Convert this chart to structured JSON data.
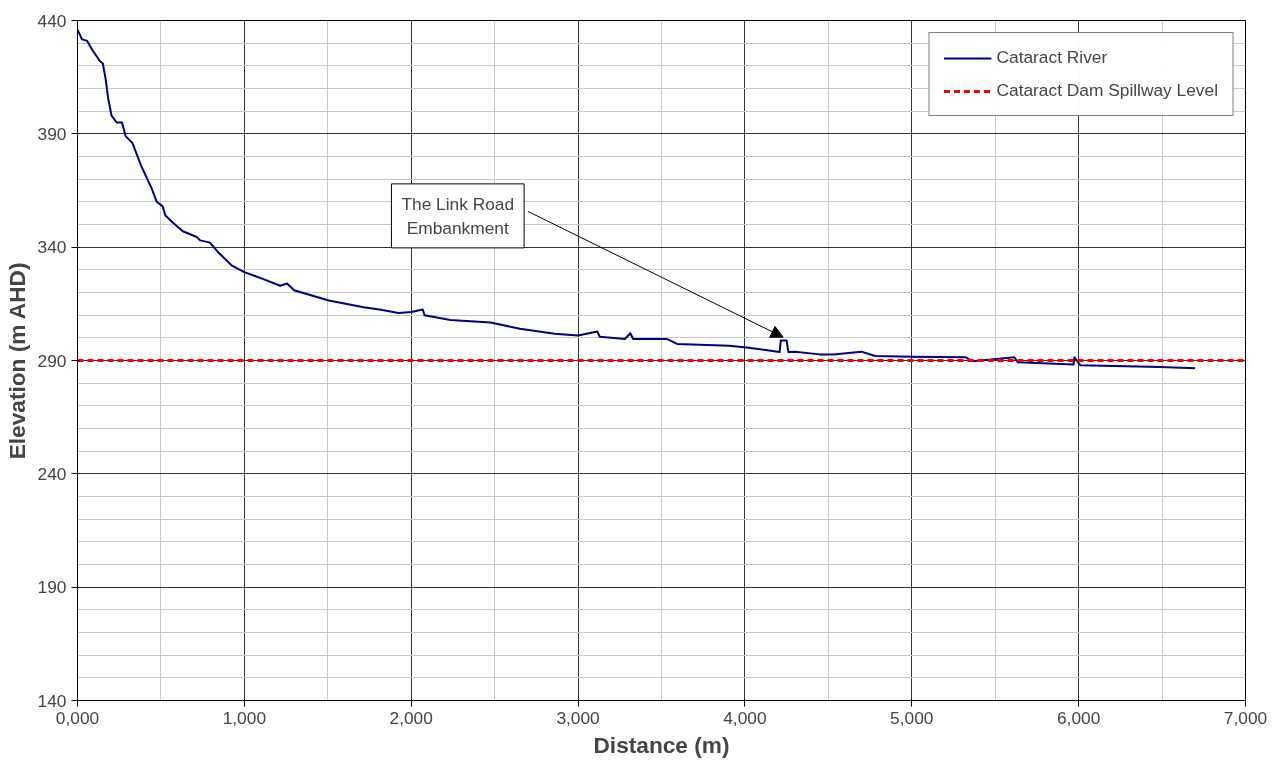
{
  "chart_data": {
    "type": "line",
    "xlabel": "Distance (m)",
    "ylabel": "Elevation (m AHD)",
    "xlim": [
      0,
      7000
    ],
    "ylim": [
      140,
      440
    ],
    "xticks": [
      {
        "value": 0,
        "label": "0,000"
      },
      {
        "value": 1000,
        "label": "1,000"
      },
      {
        "value": 2000,
        "label": "2,000"
      },
      {
        "value": 3000,
        "label": "3,000"
      },
      {
        "value": 4000,
        "label": "4,000"
      },
      {
        "value": 5000,
        "label": "5,000"
      },
      {
        "value": 6000,
        "label": "6,000"
      },
      {
        "value": 7000,
        "label": "7,000"
      }
    ],
    "yticks": [
      140,
      190,
      240,
      290,
      340,
      390,
      440
    ],
    "grid": true,
    "legend": "top right",
    "marker": "none",
    "line_style": "solid",
    "series": [
      {
        "name": "Cataract River",
        "color": "#000080",
        "x": [
          0,
          27,
          58,
          89,
          135,
          152,
          169,
          183,
          204,
          235,
          267,
          288,
          329,
          381,
          444,
          475,
          510,
          527,
          569,
          631,
          715,
          735,
          794,
          840,
          923,
          1000,
          1110,
          1215,
          1256,
          1298,
          1506,
          1715,
          1819,
          1923,
          2000,
          2069,
          2080,
          2235,
          2475,
          2652,
          2860,
          3000,
          3115,
          3130,
          3281,
          3313,
          3330,
          3531,
          3594,
          3906,
          4010,
          4208,
          4215,
          4229,
          4250,
          4260,
          4300,
          4447,
          4531,
          4698,
          4781,
          5000,
          5323,
          5365,
          5615,
          5635,
          5969,
          5975,
          6010,
          6490,
          6698
        ],
        "values": [
          436,
          431.7,
          431,
          427,
          422,
          421,
          414,
          406,
          398,
          395,
          395,
          389,
          386,
          376,
          366,
          360,
          358,
          354,
          351,
          347,
          344.5,
          343,
          342,
          338,
          332,
          329,
          326,
          323,
          324,
          321,
          316.5,
          313.5,
          312.4,
          311,
          311.4,
          312.5,
          310,
          307.9,
          306.8,
          304,
          301.8,
          301,
          302.8,
          300.5,
          299.5,
          302,
          299.5,
          299.5,
          297.3,
          296.5,
          295.7,
          293.8,
          298.8,
          298.8,
          298.8,
          293.8,
          293.9,
          292.7,
          292.7,
          293.9,
          292,
          291.6,
          291.4,
          289.7,
          291.4,
          289.2,
          288.2,
          291.4,
          287.9,
          287.1,
          286.6
        ]
      }
    ],
    "ref_lines": [
      {
        "axis": "y",
        "value": 290,
        "label": "Cataract Dam Spillway Level",
        "color": "#ff0000",
        "line_style": "dashed"
      }
    ],
    "annotations": [
      {
        "text": "The Link Road Embankment",
        "x": 4229,
        "y": 298.8
      }
    ]
  }
}
